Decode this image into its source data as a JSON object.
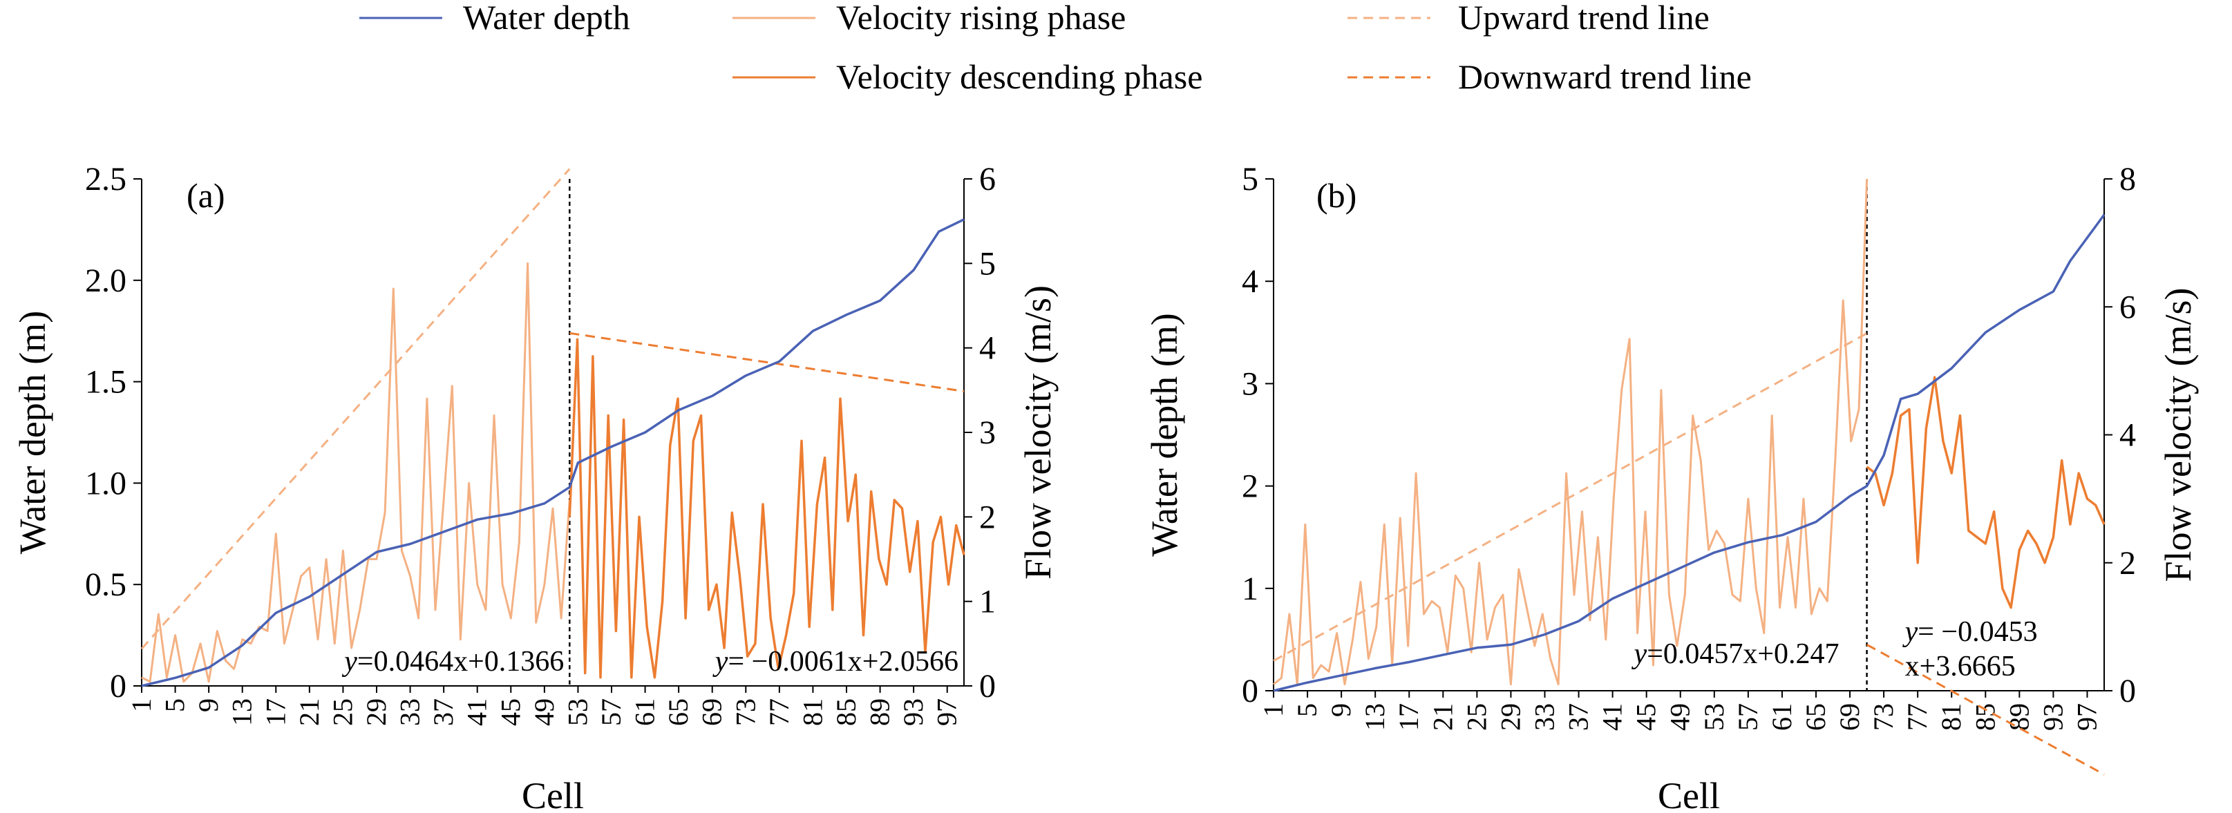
{
  "legend": [
    {
      "label": "Water depth",
      "color": "#4a62b5",
      "dash": false
    },
    {
      "label": "Velocity rising phase",
      "color": "#f4b183",
      "dash": false
    },
    {
      "label": "Upward trend line",
      "color": "#f4b183",
      "dash": true
    },
    {
      "label": "Velocity descending phase",
      "color": "#ed7d31",
      "dash": false
    },
    {
      "label": "Downward trend line",
      "color": "#ed7d31",
      "dash": true
    }
  ],
  "chart_data": [
    {
      "type": "line",
      "panel_label": "(a)",
      "xlabel": "Cell",
      "ylabel_left": "Water depth (m)",
      "ylabel_right": "Flow velocity (m/s)",
      "ylim_left": [
        0,
        2.5
      ],
      "ylim_right": [
        0,
        6
      ],
      "yticks_left": [
        "0",
        "0.5",
        "1.0",
        "1.5",
        "2.0",
        "2.5"
      ],
      "yticks_right": [
        "0",
        "1",
        "2",
        "3",
        "4",
        "5",
        "6"
      ],
      "xticks": [
        "1",
        "5",
        "9",
        "13",
        "17",
        "21",
        "25",
        "29",
        "33",
        "37",
        "41",
        "45",
        "49",
        "53",
        "57",
        "61",
        "65",
        "69",
        "73",
        "77",
        "81",
        "85",
        "89",
        "93",
        "97"
      ],
      "split_cell": 52,
      "depth_points": [
        [
          1,
          0
        ],
        [
          5,
          0.04
        ],
        [
          9,
          0.09
        ],
        [
          13,
          0.2
        ],
        [
          17,
          0.36
        ],
        [
          21,
          0.44
        ],
        [
          25,
          0.55
        ],
        [
          29,
          0.66
        ],
        [
          33,
          0.7
        ],
        [
          37,
          0.76
        ],
        [
          41,
          0.82
        ],
        [
          45,
          0.85
        ],
        [
          49,
          0.9
        ],
        [
          52,
          0.98
        ],
        [
          53,
          1.1
        ],
        [
          57,
          1.18
        ],
        [
          61,
          1.25
        ],
        [
          65,
          1.36
        ],
        [
          69,
          1.43
        ],
        [
          73,
          1.53
        ],
        [
          77,
          1.6
        ],
        [
          81,
          1.75
        ],
        [
          85,
          1.83
        ],
        [
          89,
          1.9
        ],
        [
          93,
          2.05
        ],
        [
          96,
          2.24
        ],
        [
          99,
          2.3
        ]
      ],
      "velocity_rising": [
        0.1,
        0.05,
        0.85,
        0.1,
        0.6,
        0.05,
        0.15,
        0.5,
        0.05,
        0.65,
        0.3,
        0.2,
        0.55,
        0.5,
        0.7,
        0.65,
        1.8,
        0.5,
        0.9,
        1.3,
        1.4,
        0.55,
        1.5,
        0.5,
        1.6,
        0.45,
        0.9,
        1.5,
        1.5,
        2.05,
        4.7,
        1.6,
        1.3,
        0.8,
        3.4,
        0.9,
        2.2,
        3.55,
        0.55,
        2.4,
        1.2,
        0.9,
        3.2,
        1.2,
        0.8,
        1.7,
        5.0,
        0.75,
        1.2,
        2.1,
        0.8,
        2.2
      ],
      "velocity_descending": [
        2.0,
        4.1,
        0.15,
        3.9,
        0.1,
        3.2,
        0.65,
        3.15,
        0.1,
        2.0,
        0.7,
        0.1,
        1.0,
        2.85,
        3.4,
        0.8,
        2.9,
        3.2,
        0.9,
        1.2,
        0.45,
        2.05,
        1.3,
        0.35,
        0.5,
        2.15,
        0.8,
        0.2,
        0.6,
        1.1,
        2.9,
        0.7,
        2.15,
        2.7,
        0.9,
        3.4,
        1.95,
        2.5,
        0.6,
        2.3,
        1.5,
        1.2,
        2.2,
        2.1,
        1.35,
        1.95,
        0.4,
        1.7,
        2.0,
        1.2,
        1.9,
        1.55
      ],
      "trend_up": {
        "equation_prefix": "y",
        "equation_rest": "=0.0464x+0.1366",
        "slope": 0.0464,
        "intercept": 0.1366
      },
      "trend_down": {
        "equation_prefix": "y",
        "equation_rest": "= −0.0061x+2.0566",
        "slope": -0.0061,
        "intercept": 2.0566
      }
    },
    {
      "type": "line",
      "panel_label": "(b)",
      "xlabel": "Cell",
      "ylabel_left": "Water depth (m)",
      "ylabel_right": "Flow velocity (m/s)",
      "ylim_left": [
        0,
        5
      ],
      "ylim_right": [
        0,
        8
      ],
      "yticks_left": [
        "0",
        "1",
        "2",
        "3",
        "4",
        "5"
      ],
      "yticks_right": [
        "0",
        "2",
        "4",
        "6",
        "8"
      ],
      "xticks": [
        "1",
        "5",
        "9",
        "13",
        "17",
        "21",
        "25",
        "29",
        "33",
        "37",
        "41",
        "45",
        "49",
        "53",
        "57",
        "61",
        "65",
        "69",
        "73",
        "77",
        "81",
        "85",
        "89",
        "93",
        "97"
      ],
      "split_cell": 71,
      "depth_points": [
        [
          1,
          0
        ],
        [
          5,
          0.08
        ],
        [
          9,
          0.15
        ],
        [
          13,
          0.22
        ],
        [
          17,
          0.28
        ],
        [
          21,
          0.35
        ],
        [
          25,
          0.42
        ],
        [
          29,
          0.45
        ],
        [
          33,
          0.55
        ],
        [
          37,
          0.68
        ],
        [
          41,
          0.9
        ],
        [
          45,
          1.05
        ],
        [
          49,
          1.2
        ],
        [
          53,
          1.35
        ],
        [
          57,
          1.45
        ],
        [
          61,
          1.52
        ],
        [
          65,
          1.65
        ],
        [
          69,
          1.9
        ],
        [
          71,
          2.0
        ],
        [
          73,
          2.3
        ],
        [
          75,
          2.85
        ],
        [
          77,
          2.9
        ],
        [
          81,
          3.15
        ],
        [
          85,
          3.5
        ],
        [
          89,
          3.72
        ],
        [
          93,
          3.9
        ],
        [
          95,
          4.2
        ],
        [
          99,
          4.65
        ]
      ],
      "velocity_rising": [
        0.1,
        0.2,
        1.2,
        0.1,
        2.6,
        0.2,
        0.4,
        0.3,
        0.9,
        0.1,
        0.8,
        1.7,
        0.5,
        1.0,
        2.6,
        0.4,
        2.7,
        0.7,
        3.4,
        1.2,
        1.4,
        1.3,
        0.6,
        1.8,
        1.6,
        0.6,
        2.0,
        0.8,
        1.3,
        1.5,
        0.1,
        1.9,
        1.3,
        0.7,
        1.2,
        0.5,
        0.1,
        3.4,
        1.5,
        2.8,
        1.1,
        2.4,
        0.8,
        3.0,
        4.7,
        5.5,
        0.9,
        2.8,
        0.4,
        4.7,
        1.5,
        0.7,
        1.5,
        4.3,
        3.6,
        2.2,
        2.5,
        2.3,
        1.5,
        1.4,
        3.0,
        1.6,
        0.9,
        4.3,
        1.3,
        2.4,
        1.3,
        3.0,
        1.2,
        1.6,
        1.4,
        3.6,
        6.1,
        3.9,
        4.4,
        8.0
      ],
      "velocity_descending": [
        3.5,
        3.4,
        2.9,
        3.4,
        4.3,
        4.4,
        2.0,
        4.1,
        4.9,
        3.9,
        3.4,
        4.3,
        2.5,
        2.4,
        2.3,
        2.8,
        1.6,
        1.3,
        2.2,
        2.5,
        2.3,
        2.0,
        2.4,
        3.6,
        2.6,
        3.4,
        3.0,
        2.9,
        2.6
      ],
      "trend_up": {
        "equation_prefix": "y",
        "equation_rest": "=0.0457x+0.247",
        "slope": 0.0457,
        "intercept": 0.247
      },
      "trend_down": {
        "equation_prefix": "y",
        "equation_rest": "= −0.0453",
        "equation_rest2": "x+3.6665",
        "slope": -0.0453,
        "intercept": 3.6665
      }
    }
  ]
}
